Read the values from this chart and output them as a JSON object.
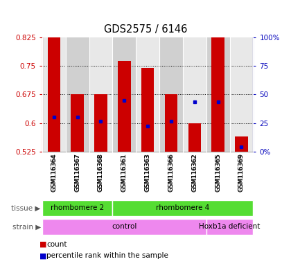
{
  "title": "GDS2575 / 6146",
  "samples": [
    "GSM116364",
    "GSM116367",
    "GSM116368",
    "GSM116361",
    "GSM116363",
    "GSM116366",
    "GSM116362",
    "GSM116365",
    "GSM116369"
  ],
  "bar_bottom": 0.525,
  "bar_tops": [
    0.825,
    0.675,
    0.675,
    0.762,
    0.745,
    0.675,
    0.6,
    0.825,
    0.565
  ],
  "blue_dot_y": [
    0.615,
    0.615,
    0.604,
    0.66,
    0.592,
    0.604,
    0.655,
    0.655,
    0.537
  ],
  "ylim": [
    0.525,
    0.825
  ],
  "yticks": [
    0.525,
    0.6,
    0.675,
    0.75,
    0.825
  ],
  "right_ytick_pcts": [
    0,
    25,
    50,
    75,
    100
  ],
  "right_ylabels": [
    "0%",
    "25",
    "50",
    "75",
    "100%"
  ],
  "bar_color": "#cc0000",
  "dot_color": "#0000cc",
  "bar_width": 0.55,
  "tissue_labels": [
    "rhombomere 2",
    "rhombomere 4"
  ],
  "tissue_ranges": [
    [
      0,
      3
    ],
    [
      3,
      9
    ]
  ],
  "tissue_color": "#55dd33",
  "strain_labels": [
    "control",
    "Hoxb1a deficient"
  ],
  "strain_ranges": [
    [
      0,
      7
    ],
    [
      7,
      9
    ]
  ],
  "strain_color": "#ee88ee",
  "legend_count_color": "#cc0000",
  "legend_dot_color": "#0000cc",
  "legend_count_label": "count",
  "legend_dot_label": "percentile rank within the sample",
  "left_label_color": "#cc0000",
  "right_label_color": "#0000bb",
  "background_color": "#ffffff",
  "plot_bg": "#dddddd",
  "col_bg_light": "#e8e8e8",
  "col_bg_dark": "#d0d0d0"
}
